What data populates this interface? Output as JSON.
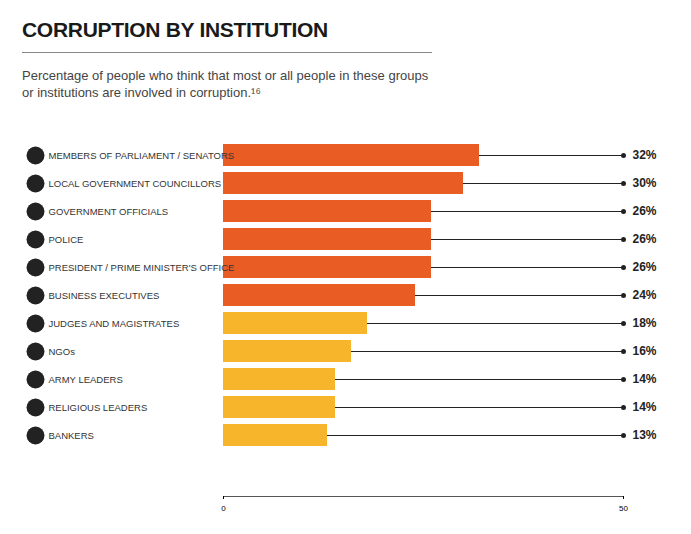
{
  "chart_data": {
    "type": "bar",
    "orientation": "horizontal",
    "title": "CORRUPTION BY INSTITUTION",
    "subtitle": "Percentage of people who think that most or all people in these groups or institutions are involved in corruption.¹⁶",
    "categories": [
      "MEMBERS OF PARLIAMENT / SENATORS",
      "LOCAL GOVERNMENT COUNCILLORS",
      "GOVERNMENT OFFICIALS",
      "POLICE",
      "PRESIDENT / PRIME MINISTER'S OFFICE",
      "BUSINESS EXECUTIVES",
      "JUDGES AND MAGISTRATES",
      "NGOs",
      "ARMY LEADERS",
      "RELIGIOUS LEADERS",
      "BANKERS"
    ],
    "values": [
      32,
      30,
      26,
      26,
      26,
      24,
      18,
      16,
      14,
      14,
      13
    ],
    "value_labels": [
      "32%",
      "30%",
      "26%",
      "26%",
      "26%",
      "24%",
      "18%",
      "16%",
      "14%",
      "14%",
      "13%"
    ],
    "colors": [
      "#e95d25",
      "#e95d25",
      "#e95d25",
      "#e95d25",
      "#e95d25",
      "#e95d25",
      "#f7b52c",
      "#f7b52c",
      "#f7b52c",
      "#f7b52c",
      "#f7b52c"
    ],
    "xlim": [
      0,
      50
    ],
    "xticks": [
      0,
      50
    ],
    "data_labels": true
  }
}
